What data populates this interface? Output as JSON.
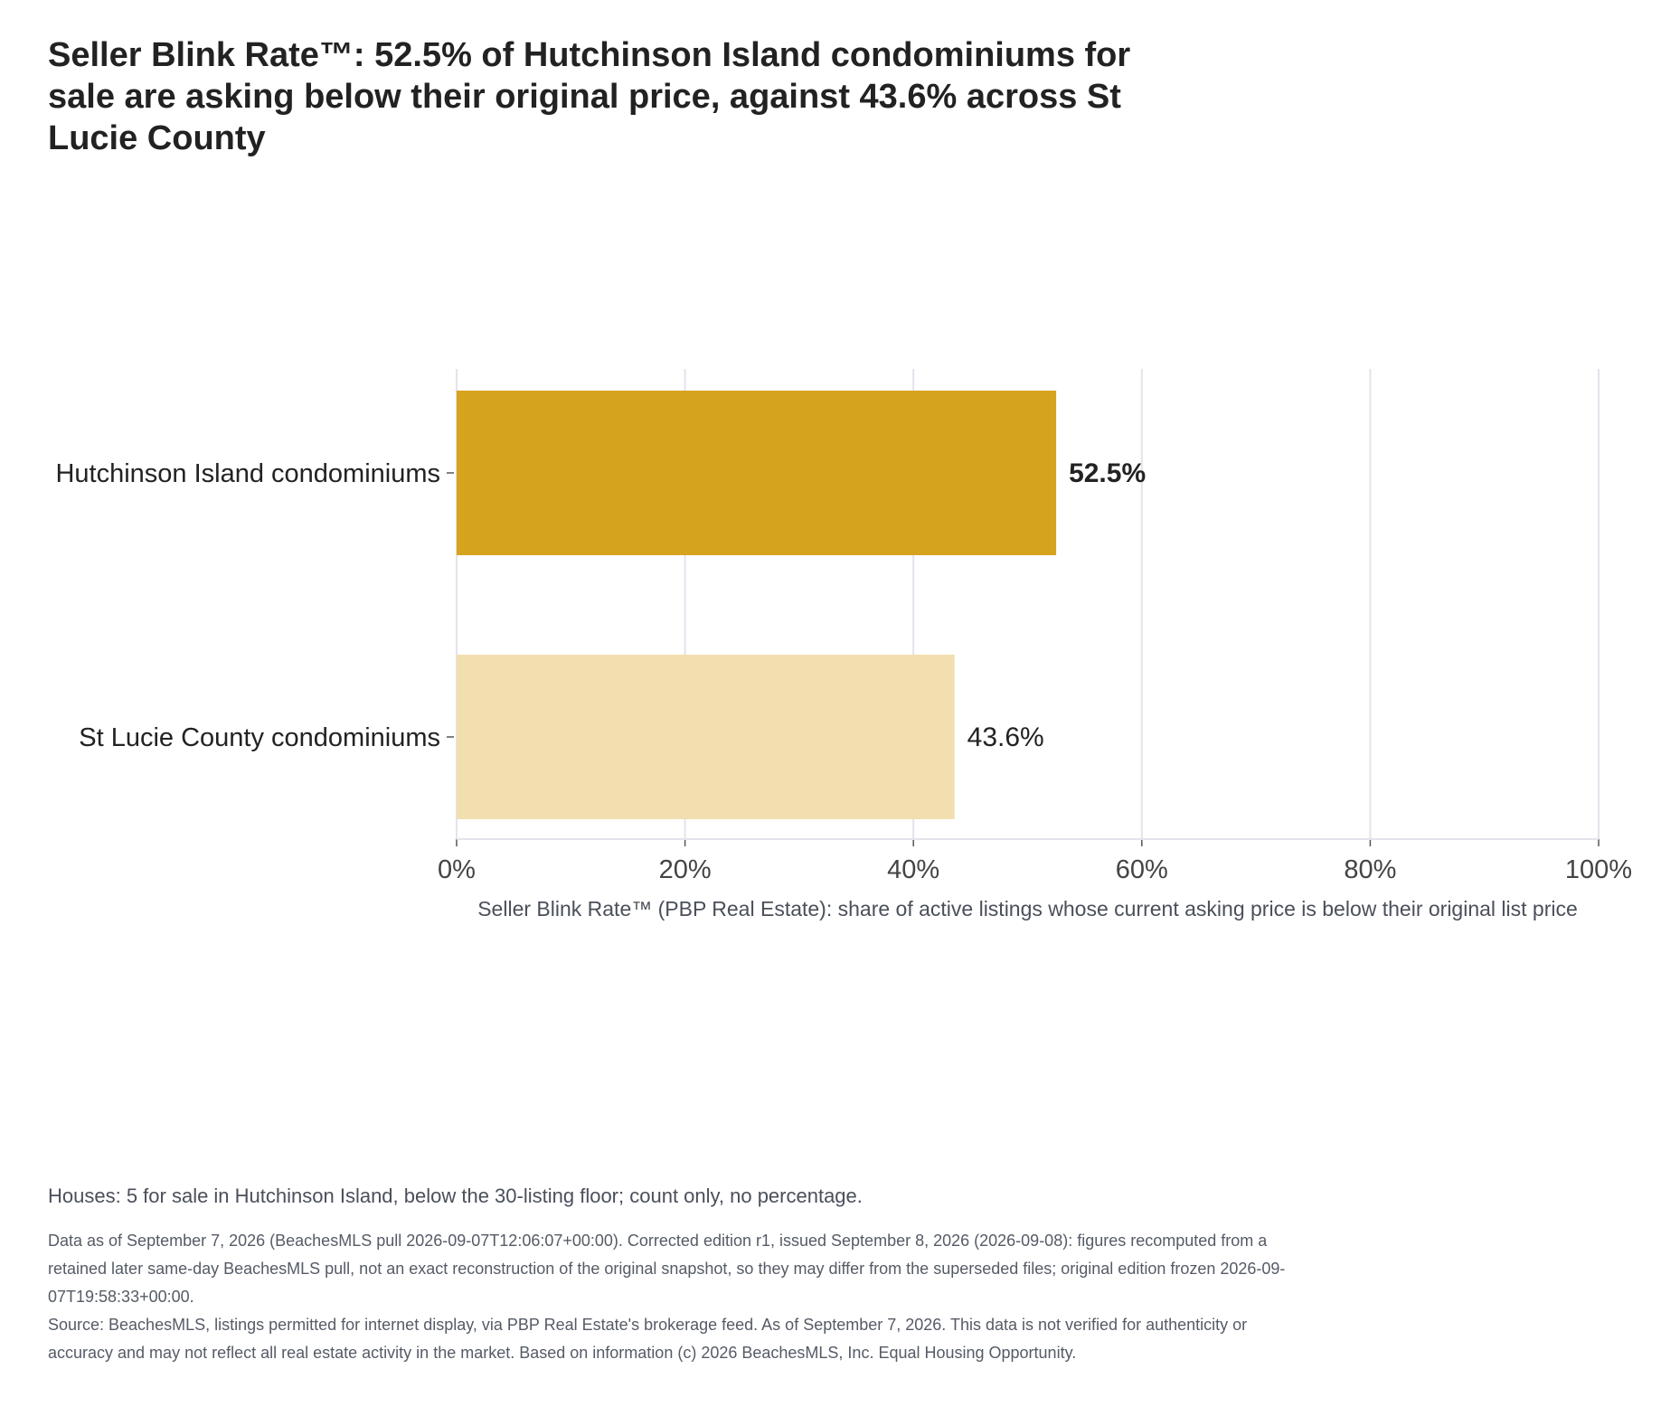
{
  "title": "Seller Blink Rate™: 52.5% of Hutchinson Island condominiums for sale are asking below their original price, against 43.6% across St Lucie County",
  "note": "Houses: 5 for sale in Hutchinson Island, below the 30-listing floor; count only, no percentage.",
  "footer": {
    "edition": "Data as of September 7, 2026 (BeachesMLS pull 2026-09-07T12:06:07+00:00). Corrected edition r1, issued September 8, 2026 (2026-09-08): figures recomputed from a retained later same-day BeachesMLS pull, not an exact reconstruction of the original snapshot, so they may differ from the superseded files; original edition frozen 2026-09-07T19:58:33+00:00.",
    "source": "Source: BeachesMLS, listings permitted for internet display, via PBP Real Estate's brokerage feed. As of September 7, 2026. This data is not verified for authenticity or accuracy and may not reflect all real estate activity in the market. Based on information (c) 2026 BeachesMLS, Inc. Equal Housing Opportunity."
  },
  "chart_data": {
    "type": "bar",
    "orientation": "horizontal",
    "categories": [
      "Hutchinson Island condominiums",
      "St Lucie County condominiums"
    ],
    "values": [
      52.5,
      43.6
    ],
    "value_labels": [
      "52.5%",
      "43.6%"
    ],
    "colors": [
      "#d6a31e",
      "#f2dfb0"
    ],
    "xlabel": "Seller Blink Rate™ (PBP Real Estate): share of active listings whose current asking price is below their original list price",
    "xlim": [
      0,
      100
    ],
    "xticks": [
      0,
      20,
      40,
      60,
      80,
      100
    ],
    "xtick_labels": [
      "0%",
      "20%",
      "40%",
      "60%",
      "80%",
      "100%"
    ],
    "grid": "vertical",
    "grid_color": "#e3e3ec"
  }
}
